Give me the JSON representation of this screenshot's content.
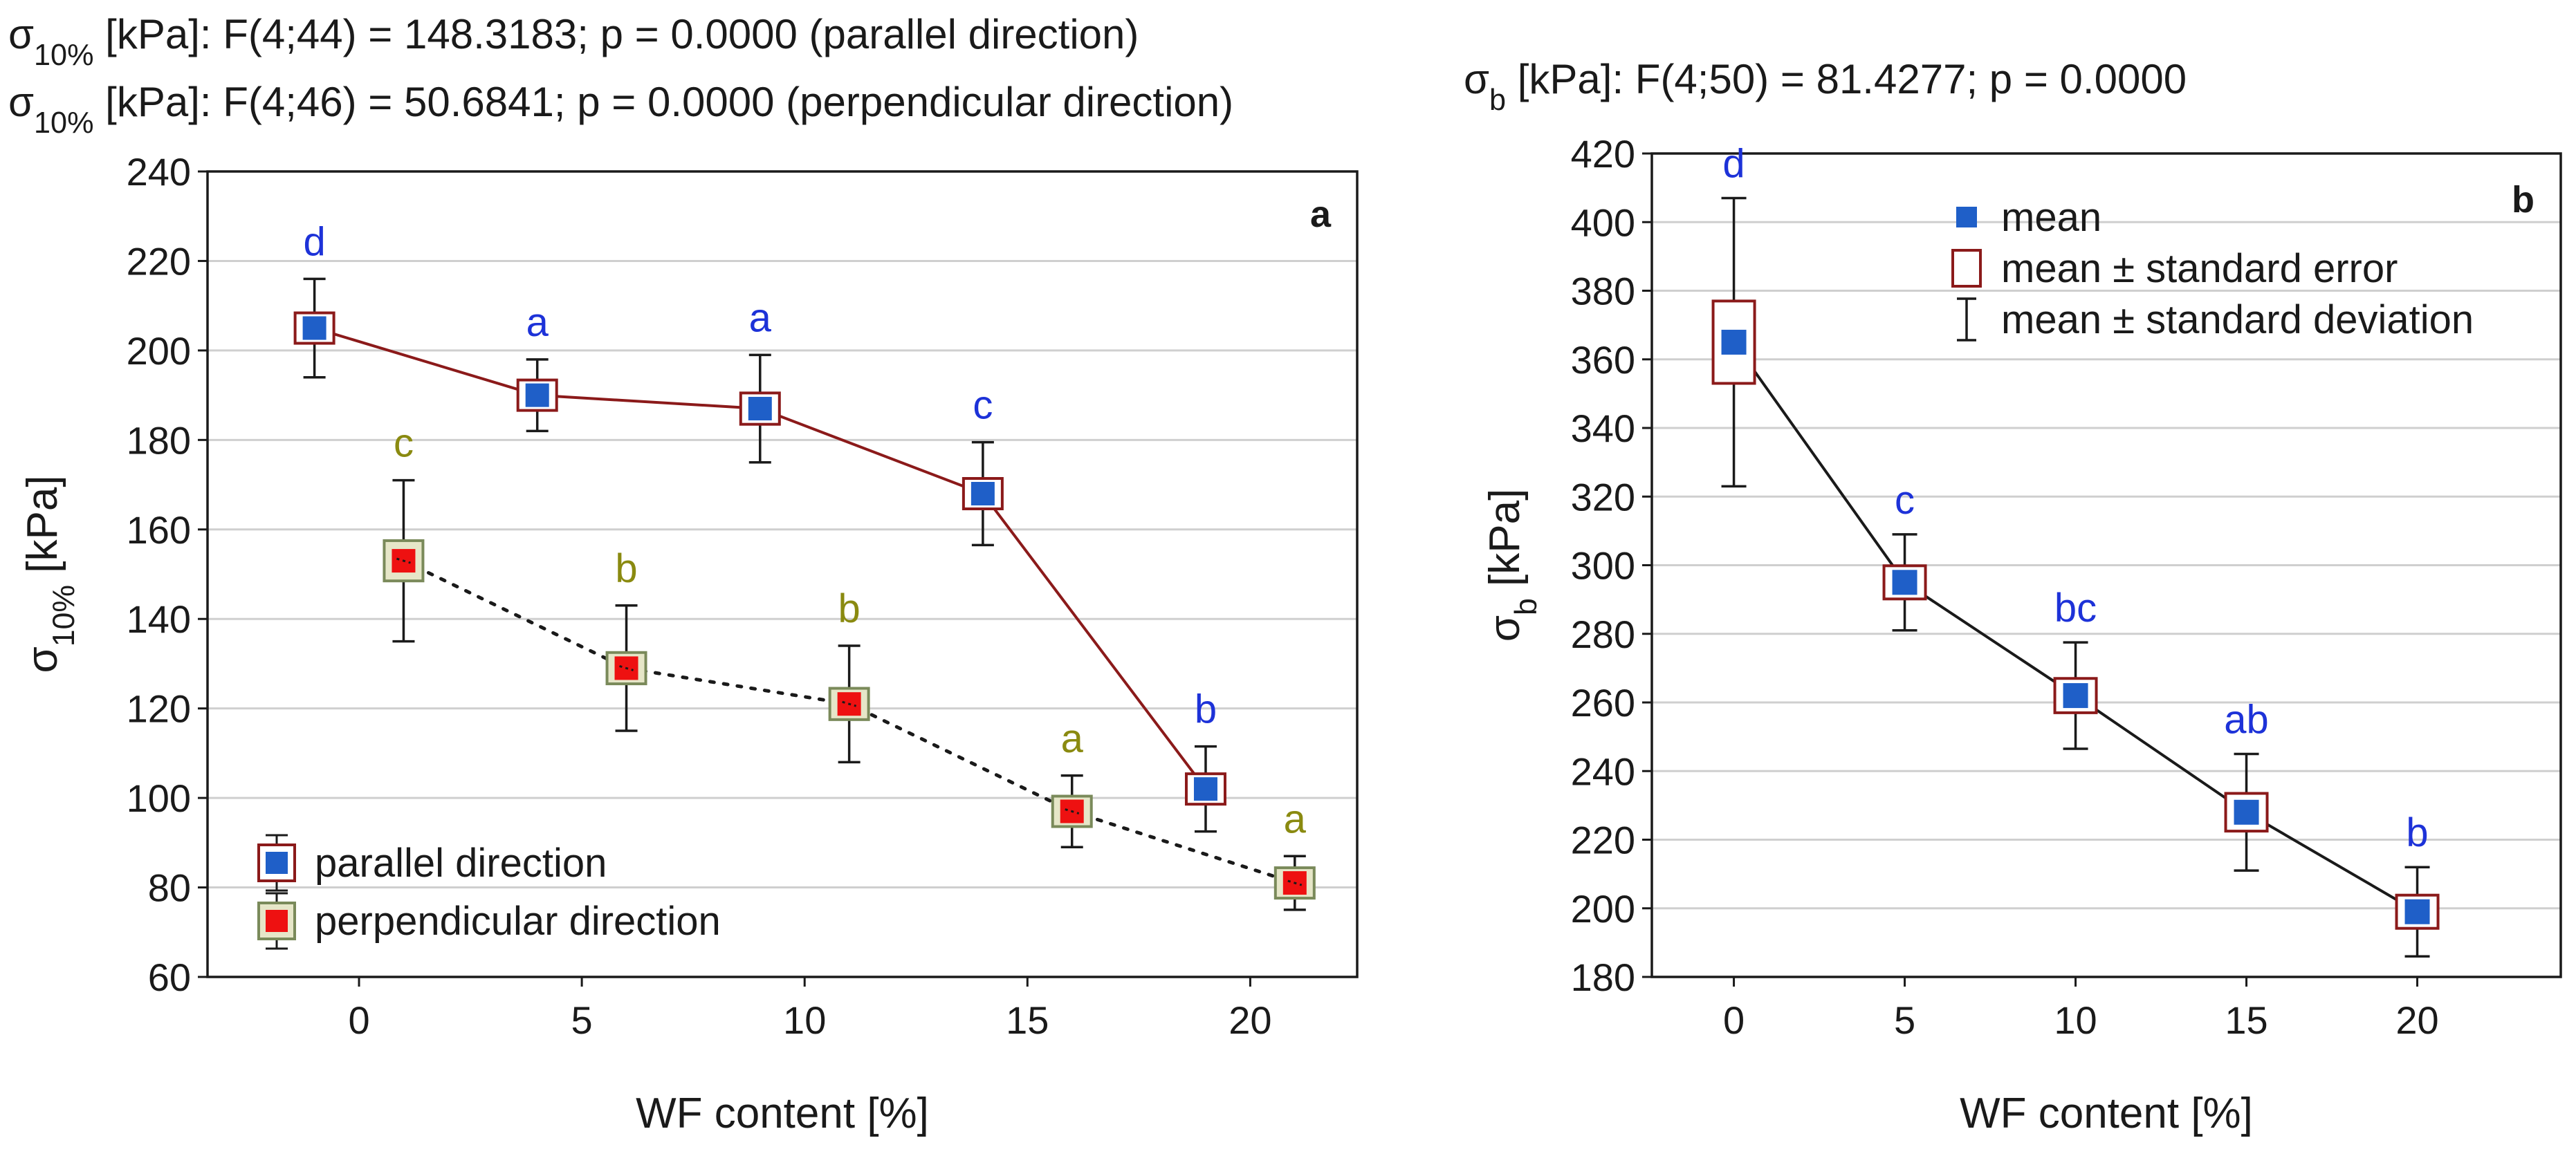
{
  "chart_data": [
    {
      "type": "line",
      "panel_label": "a",
      "header_lines": [
        {
          "symbol": "σ",
          "subscript": "10%",
          "text": " [kPa]: F(4;44) = 148.3183; p = 0.0000 (parallel direction)"
        },
        {
          "symbol": "σ",
          "subscript": "10%",
          "text": " [kPa]: F(4;46) = 50.6841; p = 0.0000 (perpendicular direction)"
        }
      ],
      "xlabel": "WF content [%]",
      "ylabel": {
        "symbol": "σ",
        "subscript": "10%",
        "text": " [kPa]"
      },
      "xlim": [
        -3.4,
        22.4
      ],
      "ylim": [
        60,
        240
      ],
      "xticks": [
        0,
        5,
        10,
        15,
        20
      ],
      "yticks": [
        60,
        80,
        100,
        120,
        140,
        160,
        180,
        200,
        220,
        240
      ],
      "grid": "horizontal",
      "legend_position": "bottom-left",
      "series": [
        {
          "name": "parallel direction",
          "line_color": "#8b1a1a",
          "line_style": "solid",
          "marker_color": "#1f5fc8",
          "box_color": "#8b1a1a",
          "label_color": "#1d32d8",
          "points": [
            {
              "x": -1,
              "mean": 205,
              "se": 3,
              "sd": 11,
              "group": "d"
            },
            {
              "x": 4,
              "mean": 190,
              "se": 2.5,
              "sd": 8,
              "group": "a"
            },
            {
              "x": 9,
              "mean": 187,
              "se": 3.5,
              "sd": 12,
              "group": "a"
            },
            {
              "x": 14,
              "mean": 168,
              "se": 3,
              "sd": 11.5,
              "group": "c"
            },
            {
              "x": 19,
              "mean": 102,
              "se": 2.5,
              "sd": 9.5,
              "group": "b"
            }
          ]
        },
        {
          "name": "perpendicular direction",
          "line_color": "#1a1a1a",
          "line_style": "dotted",
          "marker_color": "#ee1111",
          "box_color": "#7a8a5a",
          "box_fill": "#e6e6c8",
          "label_color": "#8a8a10",
          "points": [
            {
              "x": 1,
              "mean": 153,
              "se": 4.5,
              "sd": 18,
              "group": "c"
            },
            {
              "x": 6,
              "mean": 129,
              "se": 3.5,
              "sd": 14,
              "group": "b"
            },
            {
              "x": 11,
              "mean": 121,
              "se": 3.5,
              "sd": 13,
              "group": "b"
            },
            {
              "x": 16,
              "mean": 97,
              "se": 2,
              "sd": 8,
              "group": "a"
            },
            {
              "x": 21,
              "mean": 81,
              "se": 1.5,
              "sd": 6,
              "group": "a"
            }
          ]
        }
      ]
    },
    {
      "type": "line",
      "panel_label": "b",
      "header_lines": [
        {
          "symbol": "σ",
          "subscript": "b",
          "text": " [kPa]: F(4;50) = 81.4277; p = 0.0000"
        }
      ],
      "xlabel": "WF content [%]",
      "ylabel": {
        "symbol": "σ",
        "subscript": "b",
        "text": " [kPa]"
      },
      "xlim": [
        -2.4,
        24.2
      ],
      "ylim": [
        180,
        420
      ],
      "xticks": [
        0,
        5,
        10,
        15,
        20
      ],
      "yticks": [
        180,
        200,
        220,
        240,
        260,
        280,
        300,
        320,
        340,
        360,
        380,
        400,
        420
      ],
      "grid": "horizontal",
      "legend_position": "top-right",
      "legend": [
        "mean",
        "mean ± standard error",
        "mean ± standard deviation"
      ],
      "series": [
        {
          "name": "mean",
          "line_color": "#1a1a1a",
          "line_style": "solid",
          "marker_color": "#1f5fc8",
          "box_color": "#8b1a1a",
          "label_color": "#1d32d8",
          "points": [
            {
              "x": 0,
              "mean": 365,
              "se": 12,
              "sd": 42,
              "group": "d"
            },
            {
              "x": 5,
              "mean": 295,
              "se": 4,
              "sd": 14,
              "group": "c"
            },
            {
              "x": 10,
              "mean": 262,
              "se": 5,
              "sd": 15.5,
              "group": "bc"
            },
            {
              "x": 15,
              "mean": 228,
              "se": 5.5,
              "sd": 17,
              "group": "ab"
            },
            {
              "x": 20,
              "mean": 199,
              "se": 4,
              "sd": 13,
              "group": "b"
            }
          ]
        }
      ]
    }
  ]
}
